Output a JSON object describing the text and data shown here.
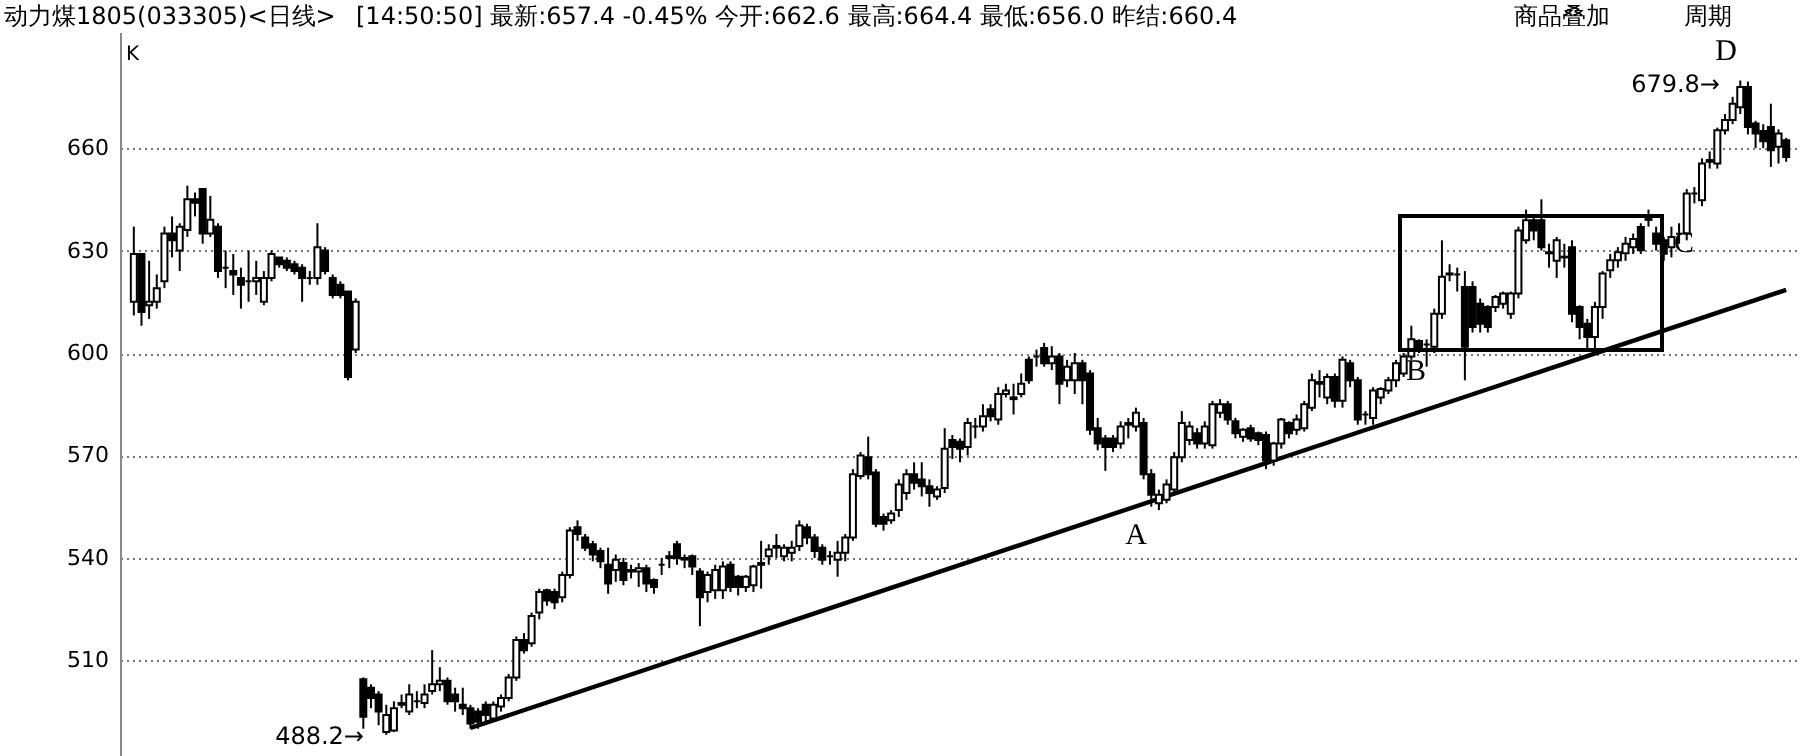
{
  "chart_data": {
    "type": "candlestick",
    "title": "动力煤1805(033305)<日线>",
    "color": "#000000",
    "categories": [
      null,
      null,
      null,
      null,
      null,
      null,
      null,
      null,
      null,
      null,
      null,
      null,
      null,
      null,
      null,
      null,
      null,
      null,
      null,
      null,
      null,
      null,
      null,
      null,
      null,
      null,
      null,
      null,
      null,
      null,
      null,
      null,
      null,
      null,
      null,
      null,
      null,
      null,
      null,
      null,
      null,
      null,
      null,
      null,
      null,
      null,
      null,
      null,
      null,
      null,
      null,
      null,
      null,
      null,
      null,
      null,
      null,
      null,
      null,
      null,
      null,
      null,
      null,
      null,
      null,
      null,
      null,
      null,
      null,
      null,
      null,
      null,
      null,
      null,
      null,
      null,
      null,
      null,
      null,
      null,
      null,
      null,
      null,
      null,
      null,
      null,
      null,
      null,
      null,
      null,
      null,
      null,
      null,
      null,
      null,
      null,
      null,
      null,
      null,
      null,
      null,
      null,
      null,
      null,
      null,
      null,
      null,
      null,
      null,
      null,
      null,
      null,
      null,
      null,
      null,
      null,
      null,
      null,
      null,
      null,
      null,
      null,
      null,
      null,
      null,
      null,
      null,
      null,
      null,
      null,
      null,
      null,
      null,
      null,
      null,
      null,
      null,
      null,
      null,
      null,
      null,
      null,
      null,
      null,
      null,
      null,
      null,
      null,
      null,
      null,
      null,
      null,
      null,
      null,
      null,
      null,
      null,
      null,
      null,
      null,
      null,
      null,
      null,
      null,
      null,
      null,
      null,
      null,
      null,
      null,
      null,
      null,
      null,
      null,
      null,
      null,
      null,
      null,
      null,
      null,
      null,
      null,
      null,
      null,
      null,
      null,
      null,
      null,
      null,
      null,
      null,
      null,
      null,
      null,
      null,
      null,
      null,
      null,
      null,
      null,
      null,
      null,
      null,
      null,
      null,
      null,
      null,
      null,
      null,
      null,
      null,
      null,
      null,
      null,
      null,
      null,
      null
    ],
    "ohlc": [
      [
        615,
        637,
        611,
        629
      ],
      [
        629,
        629,
        608,
        612
      ],
      [
        614,
        627,
        610,
        615
      ],
      [
        615,
        623,
        613,
        619
      ],
      [
        621,
        637,
        619,
        635
      ],
      [
        635,
        640,
        628,
        633
      ],
      [
        630,
        638,
        624,
        637
      ],
      [
        636,
        649,
        634,
        645
      ],
      [
        645,
        647,
        640,
        644
      ],
      [
        648,
        648,
        632,
        635
      ],
      [
        635,
        646,
        634,
        639
      ],
      [
        637,
        638,
        622,
        624
      ],
      [
        625,
        630,
        619,
        625
      ],
      [
        624,
        629,
        617,
        623
      ],
      [
        622,
        625,
        613,
        620
      ],
      [
        621,
        630,
        615,
        621
      ],
      [
        621,
        627,
        617,
        622
      ],
      [
        615,
        624,
        614,
        622
      ],
      [
        622,
        630,
        621,
        629
      ],
      [
        628,
        628,
        625,
        626
      ],
      [
        627,
        628,
        624,
        625
      ],
      [
        626,
        627,
        623,
        624
      ],
      [
        625,
        626,
        615,
        622
      ],
      [
        622,
        624,
        620,
        622
      ],
      [
        622,
        638,
        620,
        631
      ],
      [
        630,
        631,
        623,
        624
      ],
      [
        622,
        623,
        616,
        617
      ],
      [
        620,
        621,
        616,
        617
      ],
      [
        618,
        618,
        592,
        593
      ],
      [
        601,
        616,
        600,
        615
      ],
      [
        504.5,
        505,
        490,
        493.5
      ],
      [
        502,
        503,
        496,
        499
      ],
      [
        500,
        501,
        491,
        495
      ],
      [
        489,
        497,
        488.2,
        494
      ],
      [
        489.5,
        498,
        489,
        496
      ],
      [
        497,
        500,
        496,
        497.5
      ],
      [
        495,
        503,
        494,
        500
      ],
      [
        498,
        501,
        496,
        498
      ],
      [
        497.5,
        503,
        496,
        500
      ],
      [
        501,
        513,
        500,
        503
      ],
      [
        503,
        508,
        501,
        504
      ],
      [
        504,
        505,
        497,
        498
      ],
      [
        500,
        502,
        495,
        498
      ],
      [
        497,
        502,
        494,
        496
      ],
      [
        496,
        497,
        490,
        491.5
      ],
      [
        495,
        496,
        490,
        492
      ],
      [
        497,
        498,
        492,
        494
      ],
      [
        493,
        498,
        492,
        497
      ],
      [
        496.5,
        500,
        495,
        499
      ],
      [
        499,
        506,
        498,
        505
      ],
      [
        505,
        517,
        504,
        516
      ],
      [
        516,
        518,
        512,
        513
      ],
      [
        515,
        524,
        514,
        523
      ],
      [
        524,
        531,
        522,
        530
      ],
      [
        530.5,
        531,
        526,
        527.5
      ],
      [
        530,
        531,
        525,
        527
      ],
      [
        528.5,
        536,
        527,
        535
      ],
      [
        535,
        549,
        534,
        548
      ],
      [
        549,
        551,
        545,
        547
      ],
      [
        546,
        547,
        542,
        543
      ],
      [
        544,
        545,
        539,
        541
      ],
      [
        542,
        543,
        537,
        539
      ],
      [
        538,
        543,
        529.5,
        532.5
      ],
      [
        536.5,
        541,
        533,
        539.5
      ],
      [
        538.5,
        540,
        532,
        533.5
      ],
      [
        536,
        538,
        534,
        536.5
      ],
      [
        536,
        538.5,
        531.5,
        537
      ],
      [
        537,
        538,
        530,
        532.5
      ],
      [
        533.5,
        534,
        529.5,
        531.5
      ],
      [
        538,
        540,
        535,
        538
      ],
      [
        540,
        542,
        537,
        540.5
      ],
      [
        544,
        545,
        538,
        540
      ],
      [
        539.5,
        541,
        537,
        540
      ],
      [
        540.5,
        541,
        535,
        537.5
      ],
      [
        536,
        537,
        520,
        528.5
      ],
      [
        530,
        536,
        527,
        535
      ],
      [
        530.5,
        538,
        528,
        536.5
      ],
      [
        530.5,
        539,
        528,
        537.5
      ],
      [
        538,
        539,
        530,
        531.5
      ],
      [
        534.5,
        535,
        529,
        531.5
      ],
      [
        531.5,
        535,
        530,
        534.5
      ],
      [
        532,
        538,
        530,
        537.5
      ],
      [
        538,
        545,
        531,
        538.5
      ],
      [
        540.5,
        544,
        538,
        542.5
      ],
      [
        543,
        547,
        540,
        543.5
      ],
      [
        540.5,
        544,
        539,
        543
      ],
      [
        541.5,
        545,
        539,
        543
      ],
      [
        543.5,
        551,
        542,
        549.5
      ],
      [
        549,
        550,
        544,
        546
      ],
      [
        546,
        547,
        540,
        542
      ],
      [
        543,
        544,
        538,
        539.5
      ],
      [
        540.5,
        542,
        538,
        540.5
      ],
      [
        539.5,
        545,
        534.5,
        541.5
      ],
      [
        541.5,
        547,
        539,
        546
      ],
      [
        546,
        566,
        545,
        564.5
      ],
      [
        564,
        571,
        563,
        570
      ],
      [
        569.5,
        575.5,
        563,
        564.5
      ],
      [
        565,
        566,
        549,
        550
      ],
      [
        552,
        553,
        548,
        550
      ],
      [
        551,
        554,
        550,
        553
      ],
      [
        554,
        563,
        552,
        561.5
      ],
      [
        559,
        566,
        557,
        564.5
      ],
      [
        564.5,
        568,
        560,
        562
      ],
      [
        563,
        568,
        558,
        561
      ],
      [
        561,
        563,
        555,
        559
      ],
      [
        558,
        561,
        557,
        560
      ],
      [
        560.5,
        578,
        559,
        572
      ],
      [
        574.5,
        576,
        569,
        572.5
      ],
      [
        574,
        575,
        568,
        572
      ],
      [
        572.5,
        581,
        570,
        579.5
      ],
      [
        578.5,
        581,
        575,
        578.5
      ],
      [
        578.5,
        585,
        577,
        581.5
      ],
      [
        583.5,
        585,
        580,
        581.5
      ],
      [
        580.5,
        590,
        579,
        588
      ],
      [
        588,
        591,
        587,
        589
      ],
      [
        586.5,
        591,
        582,
        587
      ],
      [
        588,
        594,
        587,
        591
      ],
      [
        598,
        599,
        591,
        592
      ],
      [
        599,
        601,
        596,
        599
      ],
      [
        601.5,
        603,
        596,
        597
      ],
      [
        597,
        602,
        595,
        599
      ],
      [
        599,
        600,
        585,
        591
      ],
      [
        592,
        598,
        590,
        596
      ],
      [
        592,
        600,
        588,
        597
      ],
      [
        597,
        598,
        585,
        592
      ],
      [
        594,
        595,
        576,
        577.5
      ],
      [
        578,
        581,
        571.5,
        573.5
      ],
      [
        575,
        576,
        565.5,
        572.5
      ],
      [
        575,
        576,
        571,
        572.5
      ],
      [
        573.5,
        580,
        572,
        578.5
      ],
      [
        579,
        581,
        575,
        579.5
      ],
      [
        578.5,
        584,
        577,
        582.5
      ],
      [
        579.5,
        581,
        563,
        564.5
      ],
      [
        564.5,
        566,
        555,
        558.5
      ],
      [
        556,
        560,
        554,
        558.5
      ],
      [
        557,
        563,
        556,
        561.5
      ],
      [
        560,
        571,
        559,
        569.5
      ],
      [
        569.5,
        583,
        568,
        579.5
      ],
      [
        574.5,
        580,
        573,
        578.5
      ],
      [
        576.5,
        578,
        572,
        573.5
      ],
      [
        573.5,
        580,
        572,
        578.5
      ],
      [
        573,
        586,
        572,
        585
      ],
      [
        582.5,
        586.5,
        581,
        585
      ],
      [
        585,
        586,
        579,
        580.5
      ],
      [
        580,
        581,
        575,
        576.5
      ],
      [
        575.5,
        578,
        574,
        577.5
      ],
      [
        578,
        579,
        574,
        575
      ],
      [
        576.5,
        577,
        573,
        574.5
      ],
      [
        576,
        577,
        566,
        568.5
      ],
      [
        568.5,
        574,
        567,
        573.5
      ],
      [
        573.5,
        581,
        572,
        580.5
      ],
      [
        579.5,
        580,
        575,
        576.5
      ],
      [
        577.5,
        582,
        576,
        580.5
      ],
      [
        578,
        586,
        577,
        585
      ],
      [
        584,
        594,
        583,
        592
      ],
      [
        591,
        595,
        587,
        591.5
      ],
      [
        587,
        594,
        585,
        593
      ],
      [
        593,
        594,
        584,
        586
      ],
      [
        586,
        599,
        584,
        598
      ],
      [
        597,
        598,
        590,
        592
      ],
      [
        592,
        593,
        579,
        580.5
      ],
      [
        582,
        583,
        579,
        582
      ],
      [
        581,
        590,
        579,
        589
      ],
      [
        587,
        590,
        585,
        589.5
      ],
      [
        589,
        593,
        588,
        592
      ],
      [
        592,
        598,
        590,
        597
      ],
      [
        594,
        600,
        593,
        599
      ],
      [
        599,
        608,
        598,
        604
      ],
      [
        603.5,
        604,
        600,
        601.5
      ],
      [
        602.5,
        604,
        596,
        602.5
      ],
      [
        601.8,
        613,
        600,
        611.5
      ],
      [
        611.5,
        633,
        610,
        622.3
      ],
      [
        623,
        626,
        621,
        623.3
      ],
      [
        623,
        625,
        618,
        623
      ],
      [
        619.3,
        624,
        592,
        601.8
      ],
      [
        619.3,
        621,
        606,
        607.6
      ],
      [
        614.4,
        616,
        606,
        608.6
      ],
      [
        613.5,
        614,
        606,
        607.6
      ],
      [
        613.5,
        617,
        612,
        616.4
      ],
      [
        614.4,
        618,
        613,
        617.4
      ],
      [
        611.5,
        618,
        610,
        617.4
      ],
      [
        617.4,
        637,
        616,
        635.9
      ],
      [
        633,
        642,
        632,
        638.9
      ],
      [
        638.9,
        640,
        633,
        635.9
      ],
      [
        638.9,
        645,
        630,
        631
      ],
      [
        629.2,
        632,
        625,
        629.5
      ],
      [
        627,
        634,
        622,
        633
      ],
      [
        628,
        632,
        625,
        628.2
      ],
      [
        631,
        633,
        609,
        611.5
      ],
      [
        613.5,
        614,
        604,
        607.6
      ],
      [
        608.6,
        610,
        601,
        604.7
      ],
      [
        604.7,
        615,
        601,
        613.5
      ],
      [
        613.5,
        624,
        610,
        623.3
      ],
      [
        624.2,
        629,
        622,
        627.2
      ],
      [
        627.2,
        631,
        625,
        629.5
      ],
      [
        629.2,
        634,
        627,
        632
      ],
      [
        631,
        635,
        629,
        633.4
      ],
      [
        636.9,
        638,
        629,
        630.1
      ],
      [
        639,
        642,
        637,
        639.2
      ],
      [
        635,
        637,
        630,
        632
      ],
      [
        633,
        634,
        627,
        629.1
      ],
      [
        631,
        637,
        628,
        634
      ],
      [
        634.9,
        638,
        632,
        634.9
      ],
      [
        634.9,
        648,
        633,
        646.7
      ],
      [
        646.7,
        648.6,
        643.8,
        646.7
      ],
      [
        644.7,
        657,
        643,
        655.5
      ],
      [
        656,
        659,
        654,
        656.5
      ],
      [
        655.5,
        666,
        654,
        665.2
      ],
      [
        665.2,
        670,
        664,
        668.2
      ],
      [
        668.2,
        675,
        667,
        673
      ],
      [
        672,
        679.8,
        670,
        677.9
      ],
      [
        677.9,
        679.5,
        664,
        666.2
      ],
      [
        667.2,
        668,
        660,
        664.3
      ],
      [
        665,
        667,
        660,
        662
      ],
      [
        666.2,
        673,
        654.5,
        659.4
      ],
      [
        660.4,
        665.5,
        655.5,
        664.3
      ],
      [
        662.3,
        663,
        656,
        657.4
      ]
    ],
    "series": [
      {
        "type": "line",
        "color": "#000000",
        "values": [
          null,
          null,
          null,
          null,
          null,
          null,
          null,
          null,
          null,
          null,
          null,
          null,
          null,
          null,
          null,
          null,
          null,
          null,
          null,
          null,
          null,
          null,
          null,
          null,
          null,
          null,
          null,
          null,
          null,
          null,
          null,
          null,
          null,
          null,
          null,
          null,
          null,
          null,
          null,
          null,
          null,
          null,
          null,
          null,
          490.2,
          null,
          null,
          null,
          null,
          null,
          null,
          null,
          null,
          null,
          null,
          null,
          null,
          null,
          null,
          null,
          null,
          null,
          null,
          null,
          null,
          null,
          null,
          null,
          null,
          null,
          null,
          null,
          null,
          null,
          null,
          null,
          null,
          null,
          null,
          null,
          null,
          null,
          null,
          null,
          null,
          null,
          null,
          null,
          null,
          null,
          null,
          null,
          null,
          null,
          null,
          null,
          null,
          null,
          null,
          null,
          null,
          null,
          null,
          null,
          null,
          null,
          null,
          null,
          null,
          null,
          null,
          null,
          null,
          null,
          null,
          null,
          null,
          null,
          null,
          null,
          null,
          null,
          null,
          null,
          null,
          null,
          null,
          null,
          null,
          null,
          null,
          null,
          null,
          null,
          null,
          null,
          null,
          null,
          null,
          null,
          null,
          null,
          null,
          null,
          null,
          null,
          null,
          null,
          null,
          null,
          null,
          null,
          null,
          null,
          null,
          null,
          null,
          null,
          null,
          null,
          null,
          null,
          null,
          null,
          null,
          null,
          null,
          null,
          null,
          null,
          null,
          null,
          null,
          null,
          null,
          null,
          null,
          null,
          null,
          null,
          null,
          null,
          null,
          null,
          null,
          null,
          null,
          null,
          null,
          null,
          null,
          null,
          null,
          null,
          null,
          null,
          null,
          null,
          null,
          null,
          null,
          null,
          null,
          null,
          null,
          null,
          null,
          null,
          null,
          null,
          null,
          null,
          null,
          null,
          null,
          null,
          618.5
        ]
      }
    ],
    "ylim": [
      482,
      694
    ],
    "yticks": [
      510,
      540,
      570,
      600,
      630,
      660
    ],
    "grid": "y",
    "tick_labels": "y",
    "annotations": [
      "[14:50:50] 最新:657.4 -0.45% 今开:662.6 最高:664.4 最低:656.0 昨结:660.4",
      "商品叠加",
      "周期",
      "K",
      "A",
      "B",
      "C",
      "D",
      "679.8→",
      "488.2→"
    ]
  }
}
